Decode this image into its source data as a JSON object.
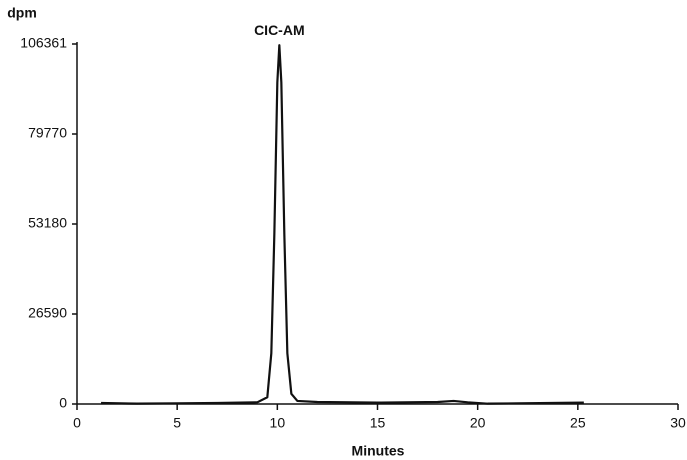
{
  "chart_data": {
    "type": "line",
    "y_label": "dpm",
    "x_label": "Minutes",
    "x": [
      1.2,
      3,
      5,
      7,
      9,
      9.5,
      9.7,
      9.85,
      10.0,
      10.1,
      10.2,
      10.35,
      10.5,
      10.7,
      11,
      12,
      15,
      18,
      18.8,
      19.5,
      20.5,
      22,
      25.3
    ],
    "series": [
      {
        "name": "CIC-AM",
        "color": "#111111",
        "values": [
          300,
          100,
          200,
          300,
          500,
          2000,
          15000,
          50000,
          95000,
          106000,
          95000,
          50000,
          15000,
          3000,
          900,
          600,
          400,
          600,
          900,
          500,
          100,
          200,
          400
        ]
      }
    ],
    "annotations": [
      {
        "text": "CIC-AM",
        "x": 10.1,
        "y": 106000
      }
    ],
    "xlim": [
      0,
      30
    ],
    "xticks": [
      0,
      5,
      10,
      15,
      20,
      25,
      30
    ],
    "ylim": [
      0,
      106361
    ],
    "yticks": [
      0,
      26590,
      53180,
      79770,
      106361
    ],
    "grid": false
  }
}
